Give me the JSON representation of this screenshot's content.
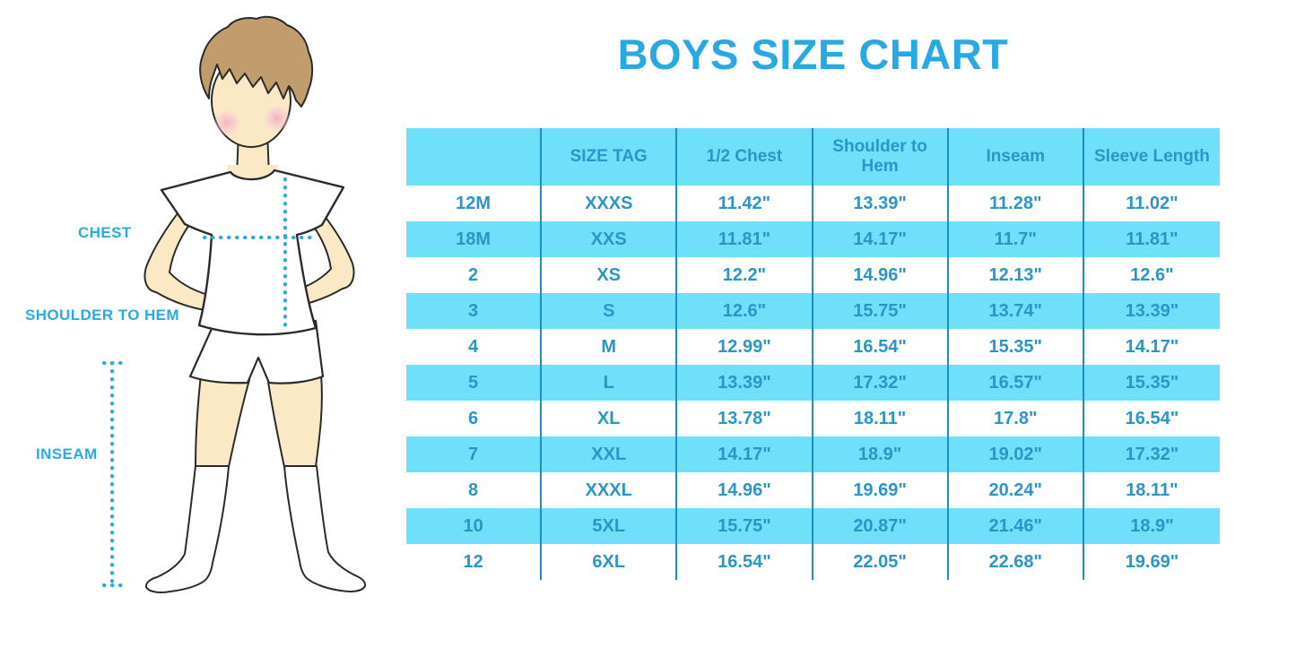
{
  "title": "BOYS SIZE CHART",
  "figure": {
    "chest_label": "CHEST",
    "shoulder_to_hem_label": "SHOULDER TO HEM",
    "inseam_label": "INSEAM"
  },
  "colors": {
    "title_blue": "#29A9E1",
    "label_blue": "#29ABE2",
    "table_text_blue": "#2B95C6",
    "stripe_blue": "#6FE0FA",
    "separator_blue": "#1E8EC2",
    "dotted_line_cyan": "#29ABE2",
    "skin": "#FBE9C6",
    "hair_brown": "#C19C6C",
    "blush_pink": "#F2A8C0",
    "outline": "#2B2B2B"
  },
  "chart_data": {
    "type": "table",
    "title": "BOYS SIZE CHART",
    "columns": [
      "",
      "SIZE TAG",
      "1/2 Chest",
      "Shoulder to Hem",
      "Inseam",
      "Sleeve Length"
    ],
    "rows": [
      [
        "12M",
        "XXXS",
        "11.42\"",
        "13.39\"",
        "11.28\"",
        "11.02\""
      ],
      [
        "18M",
        "XXS",
        "11.81\"",
        "14.17\"",
        "11.7\"",
        "11.81\""
      ],
      [
        "2",
        "XS",
        "12.2\"",
        "14.96\"",
        "12.13\"",
        "12.6\""
      ],
      [
        "3",
        "S",
        "12.6\"",
        "15.75\"",
        "13.74\"",
        "13.39\""
      ],
      [
        "4",
        "M",
        "12.99\"",
        "16.54\"",
        "15.35\"",
        "14.17\""
      ],
      [
        "5",
        "L",
        "13.39\"",
        "17.32\"",
        "16.57\"",
        "15.35\""
      ],
      [
        "6",
        "XL",
        "13.78\"",
        "18.11\"",
        "17.8\"",
        "16.54\""
      ],
      [
        "7",
        "XXL",
        "14.17\"",
        "18.9\"",
        "19.02\"",
        "17.32\""
      ],
      [
        "8",
        "XXXL",
        "14.96\"",
        "19.69\"",
        "20.24\"",
        "18.11\""
      ],
      [
        "10",
        "5XL",
        "15.75\"",
        "20.87\"",
        "21.46\"",
        "18.9\""
      ],
      [
        "12",
        "6XL",
        "16.54\"",
        "22.05\"",
        "22.68\"",
        "19.69\""
      ]
    ],
    "striped_row_indices": [
      1,
      3,
      5,
      7,
      9
    ],
    "layout": {
      "grid": "vertical column separators only, no outer border",
      "stripes": "alternating light-cyan row bands",
      "legend": "none"
    }
  }
}
